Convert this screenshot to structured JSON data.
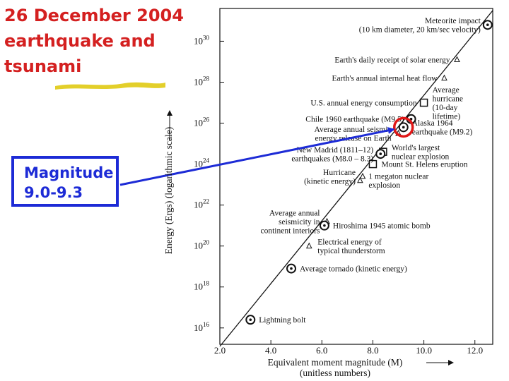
{
  "slide": {
    "title_lines": [
      "26 December 2004",
      "earthquake and",
      "tsunami"
    ],
    "callout_lines": [
      "Magnitude",
      "9.0-9.3"
    ]
  },
  "colors": {
    "title": "#d42020",
    "callout": "#1d2bd6",
    "highlight": "#e3cf2a",
    "circle": "#e01818"
  },
  "chart_data": {
    "type": "scatter",
    "title": "",
    "xlabel_lines": [
      "Equivalent moment magnitude (M)",
      "(unitless numbers)"
    ],
    "ylabel": "Energy (Ergs) (logarithmic scale)",
    "xlim": [
      2.0,
      12.7
    ],
    "ylim": [
      15.2,
      31.6
    ],
    "y_scale": "log",
    "x_ticks": [
      {
        "value": 2.0,
        "label": "2.0"
      },
      {
        "value": 4.0,
        "label": "4.0"
      },
      {
        "value": 6.0,
        "label": "6.0"
      },
      {
        "value": 8.0,
        "label": "8.0"
      },
      {
        "value": 10.0,
        "label": "10.0"
      },
      {
        "value": 12.0,
        "label": "12.0"
      }
    ],
    "y_ticks": [
      {
        "exp": 16,
        "base": "10",
        "power": "16"
      },
      {
        "exp": 18,
        "base": "10",
        "power": "18"
      },
      {
        "exp": 20,
        "base": "10",
        "power": "20"
      },
      {
        "exp": 22,
        "base": "10",
        "power": "22"
      },
      {
        "exp": 24,
        "base": "10",
        "power": "24"
      },
      {
        "exp": 26,
        "base": "10",
        "power": "26"
      },
      {
        "exp": 28,
        "base": "10",
        "power": "28"
      },
      {
        "exp": 30,
        "base": "10",
        "power": "30"
      }
    ],
    "grid": false,
    "trend_line": {
      "x": [
        2.0,
        12.7
      ],
      "log_energy": [
        15.1,
        31.5
      ]
    },
    "points": [
      {
        "label_lines": [
          "Meteorite impact",
          "(10 km diameter, 20 km/sec velocity)"
        ],
        "m": 12.5,
        "log_energy": 30.8,
        "marker": "circle-o",
        "side": "left"
      },
      {
        "label_lines": [
          "Earth's daily receipt of solar energy"
        ],
        "m": 11.3,
        "log_energy": 29.1,
        "marker": "triangle",
        "side": "left"
      },
      {
        "label_lines": [
          "Earth's annual internal heat flow"
        ],
        "m": 10.8,
        "log_energy": 28.2,
        "marker": "triangle",
        "side": "left"
      },
      {
        "label_lines": [
          "U.S. annual energy consumption"
        ],
        "m": 10.0,
        "log_energy": 27.0,
        "marker": "square",
        "side": "left"
      },
      {
        "label_lines": [
          "Average",
          "hurricane",
          "(10-day",
          "lifetime)"
        ],
        "m": 10.0,
        "log_energy": 27.0,
        "marker": "none",
        "side": "right"
      },
      {
        "label_lines": [
          "Chile 1960 earthquake (M9.5)"
        ],
        "m": 9.5,
        "log_energy": 26.2,
        "marker": "circle-o",
        "side": "left"
      },
      {
        "label_lines": [
          "Alaska 1964",
          "earthquake (M9.2)"
        ],
        "m": 9.2,
        "log_energy": 25.8,
        "marker": "circle-o",
        "side": "right"
      },
      {
        "label_lines": [
          "Average annual seismic",
          "energy release on Earth"
        ],
        "m": 9.0,
        "log_energy": 25.5,
        "marker": "triangle",
        "side": "left"
      },
      {
        "label_lines": [
          "World's largest",
          "nuclear explosion"
        ],
        "m": 8.4,
        "log_energy": 24.6,
        "marker": "square",
        "side": "right"
      },
      {
        "label_lines": [
          "New Madrid (1811–12)",
          "earthquakes (M8.0 – 8.3)"
        ],
        "m": 8.3,
        "log_energy": 24.5,
        "marker": "circle-o",
        "side": "left"
      },
      {
        "label_lines": [
          "Mount St. Helens eruption"
        ],
        "m": 8.0,
        "log_energy": 24.0,
        "marker": "square",
        "side": "right"
      },
      {
        "label_lines": [
          "Hurricane",
          "(kinetic energy)"
        ],
        "m": 7.6,
        "log_energy": 23.4,
        "marker": "triangle",
        "side": "left"
      },
      {
        "label_lines": [
          "1 megaton nuclear",
          "explosion"
        ],
        "m": 7.5,
        "log_energy": 23.2,
        "marker": "triangle",
        "side": "right"
      },
      {
        "label_lines": [
          "Average annual",
          "seismicity in",
          "continent interiors"
        ],
        "m": 6.2,
        "log_energy": 21.2,
        "marker": "triangle",
        "side": "left"
      },
      {
        "label_lines": [
          "Hiroshima 1945 atomic bomb"
        ],
        "m": 6.1,
        "log_energy": 21.0,
        "marker": "circle-o",
        "side": "right"
      },
      {
        "label_lines": [
          "Electrical energy of",
          "typical thunderstorm"
        ],
        "m": 5.5,
        "log_energy": 20.0,
        "marker": "triangle",
        "side": "right"
      },
      {
        "label_lines": [
          "Average tornado (kinetic energy)"
        ],
        "m": 4.8,
        "log_energy": 18.9,
        "marker": "circle-o",
        "side": "right"
      },
      {
        "label_lines": [
          "Lightning bolt"
        ],
        "m": 3.2,
        "log_energy": 16.4,
        "marker": "circle-o",
        "side": "right"
      }
    ],
    "highlight": {
      "m": 9.2,
      "log_energy": 25.8,
      "label": "Alaska 1964"
    },
    "callout_arrow": {
      "to_m": 9.2,
      "to_log_energy": 25.8
    }
  }
}
